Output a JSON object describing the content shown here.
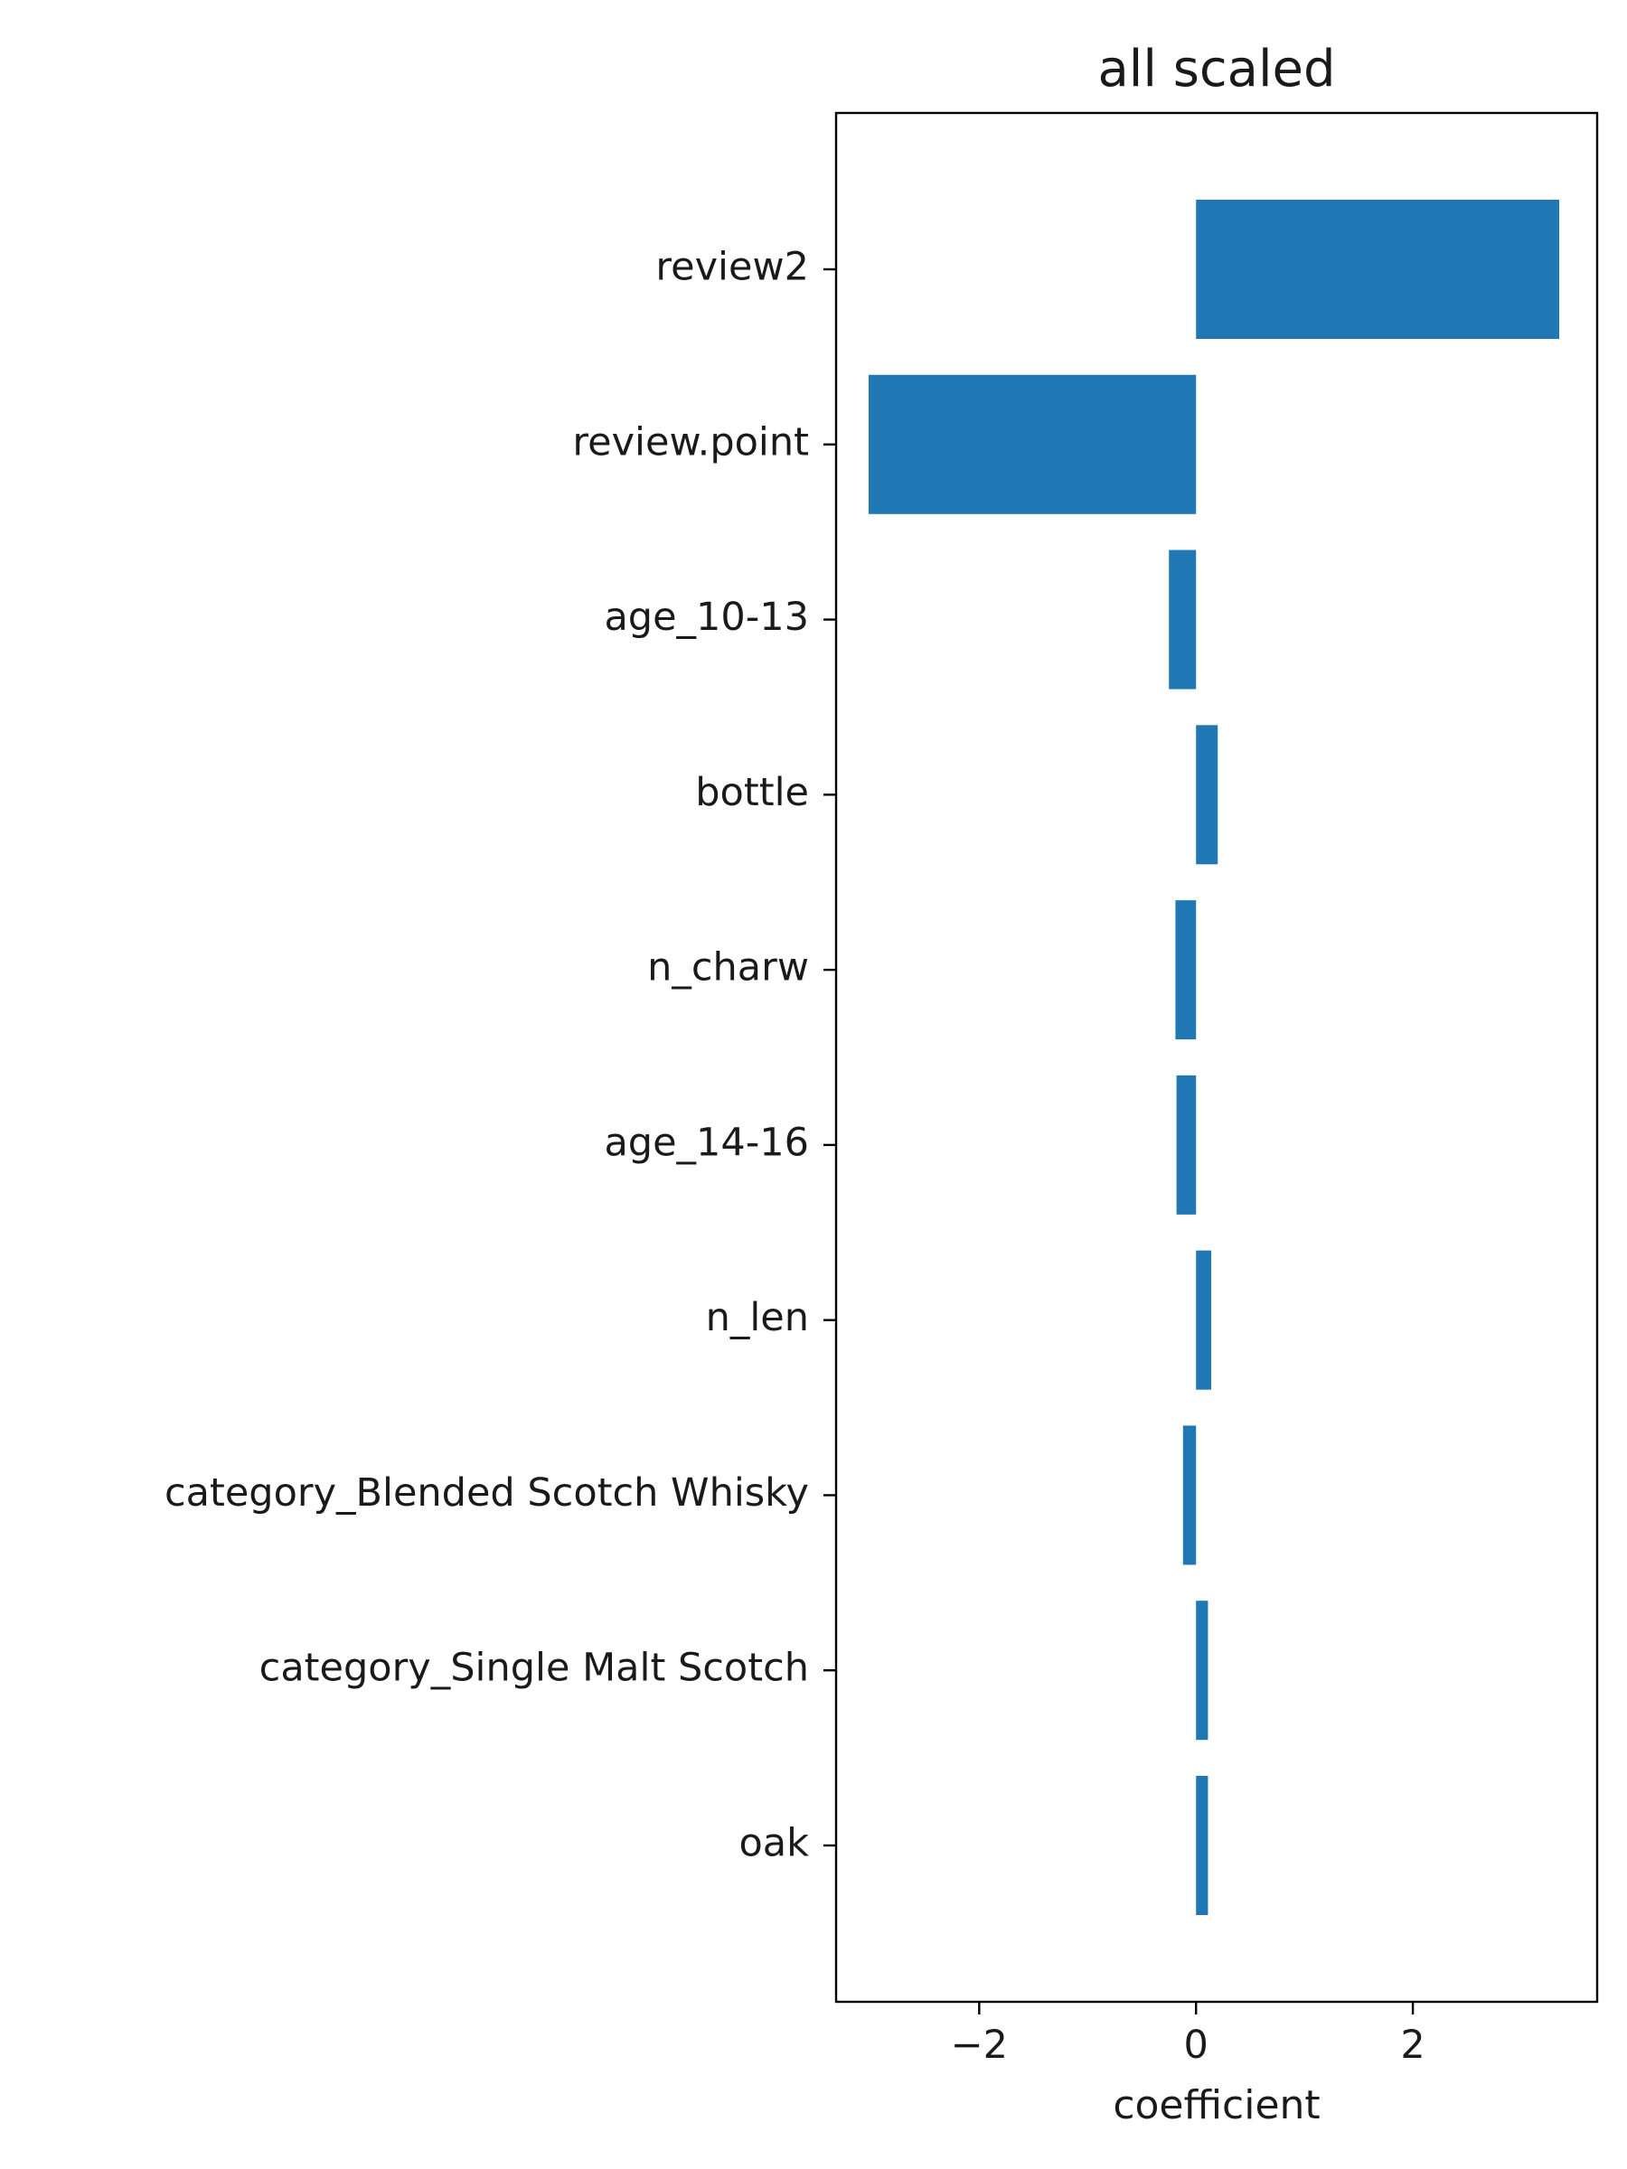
{
  "chart_data": {
    "type": "bar",
    "orientation": "horizontal",
    "title": "all scaled",
    "xlabel": "coefficient",
    "ylabel": "",
    "categories": [
      "review2",
      "review.point",
      "age_10-13",
      "bottle",
      "n_charw",
      "age_14-16",
      "n_len",
      "category_Blended Scotch Whisky",
      "category_Single Malt Scotch",
      "oak"
    ],
    "values": [
      3.35,
      -3.02,
      -0.25,
      0.2,
      -0.19,
      -0.18,
      0.14,
      -0.12,
      0.11,
      0.11
    ],
    "xlim": [
      -3.32,
      3.7
    ],
    "xticks": [
      -2,
      0,
      2
    ],
    "xtick_labels": [
      "−2",
      "0",
      "2"
    ],
    "bar_color": "#1f77b4",
    "grid": false
  }
}
